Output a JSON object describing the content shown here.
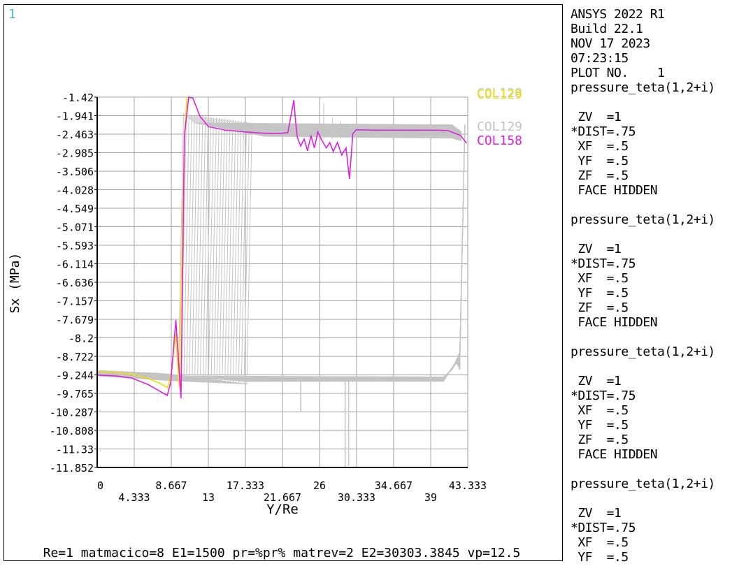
{
  "window_number": "1",
  "footer_text": "Re=1 matmacico=8 E1=1500 pr=%pr% matrev=2 E2=30303.3845 vp=12.5",
  "side_panel_lines": [
    "ANSYS 2022 R1",
    "Build 22.1",
    "NOV 17 2023",
    "07:23:15",
    "PLOT NO.    1",
    "pressure_teta(1,2+i)",
    "",
    " ZV  =1",
    "*DIST=.75",
    " XF  =.5",
    " YF  =.5",
    " ZF  =.5",
    " FACE HIDDEN",
    "",
    "pressure_teta(1,2+i)",
    "",
    " ZV  =1",
    "*DIST=.75",
    " XF  =.5",
    " YF  =.5",
    " ZF  =.5",
    " FACE HIDDEN",
    "",
    "pressure_teta(1,2+i)",
    "",
    " ZV  =1",
    "*DIST=.75",
    " XF  =.5",
    " YF  =.5",
    " ZF  =.5",
    " FACE HIDDEN",
    "",
    "pressure_teta(1,2+i)",
    "",
    " ZV  =1",
    "*DIST=.75",
    " XF  =.5",
    " YF  =.5"
  ],
  "colors": {
    "background": "#ffffff",
    "axes": "#000000",
    "grid": "#a0a0a0",
    "gray_curves": "#c4c4c4",
    "magenta": "#e020e0",
    "yellow": "#f0e000",
    "window_number": "#40c0c0"
  },
  "chart_data": {
    "type": "line",
    "xlabel": "Y/Re",
    "ylabel": "Sx  (MPa)",
    "xlim": [
      0,
      43.333
    ],
    "ylim": [
      -11.852,
      -1.42
    ],
    "x_ticks": [
      "0",
      "4.333",
      "8.667",
      "13",
      "17.333",
      "21.667",
      "26",
      "30.333",
      "34.667",
      "39",
      "43.333"
    ],
    "y_ticks": [
      "-1.42",
      "-1.941",
      "-2.463",
      "-2.985",
      "-3.506",
      "-4.028",
      "-4.549",
      "-5.071",
      "-5.593",
      "-6.114",
      "-6.636",
      "-7.157",
      "-7.679",
      "-8.2",
      "-8.722",
      "-9.244",
      "-9.765",
      "-10.287",
      "-10.808",
      "-11.33",
      "-11.852"
    ],
    "grid": true,
    "legend": [
      {
        "label": "COL128",
        "color": "#c4c4c4"
      },
      {
        "label": "COL129",
        "color": "#f0e000"
      },
      {
        "label": "COL129",
        "color": "#c4c4c4"
      },
      {
        "label": "COL158",
        "color": "#e020e0"
      }
    ],
    "series": [
      {
        "name": "COL158",
        "color": "#e020e0",
        "x": [
          0,
          2,
          4,
          6,
          7.5,
          8.2,
          8.6,
          9.2,
          9.8,
          10.2,
          10.7,
          11.2,
          12,
          13,
          15,
          17.333,
          19,
          21,
          22.3,
          23,
          23.2,
          23.4,
          23.8,
          24.2,
          24.6,
          25,
          25.4,
          25.8,
          26.3,
          26.8,
          27.2,
          27.6,
          28.1,
          28.6,
          29.1,
          29.5,
          29.9,
          30.3,
          32,
          34.667,
          37,
          39,
          41,
          42.5,
          43.2
        ],
        "y": [
          -9.25,
          -9.27,
          -9.33,
          -9.52,
          -9.73,
          -9.82,
          -9.45,
          -7.7,
          -9.9,
          -2.5,
          -1.42,
          -1.45,
          -1.95,
          -2.25,
          -2.35,
          -2.4,
          -2.43,
          -2.45,
          -2.42,
          -1.5,
          -2.1,
          -2.55,
          -2.8,
          -2.6,
          -2.93,
          -2.5,
          -2.85,
          -2.4,
          -2.65,
          -2.85,
          -2.7,
          -2.95,
          -2.7,
          -3.05,
          -2.85,
          -3.72,
          -2.45,
          -2.34,
          -2.35,
          -2.35,
          -2.35,
          -2.35,
          -2.36,
          -2.5,
          -2.72
        ]
      },
      {
        "name": "COL129",
        "color": "#f0e000",
        "x": [
          0,
          2,
          4,
          6,
          7.5,
          8.2,
          8.6,
          9.2,
          9.6,
          10.2,
          10.5
        ],
        "y": [
          -9.15,
          -9.17,
          -9.22,
          -9.35,
          -9.5,
          -9.6,
          -9.3,
          -8.1,
          -9.6,
          -2.5,
          -1.42
        ]
      }
    ]
  }
}
